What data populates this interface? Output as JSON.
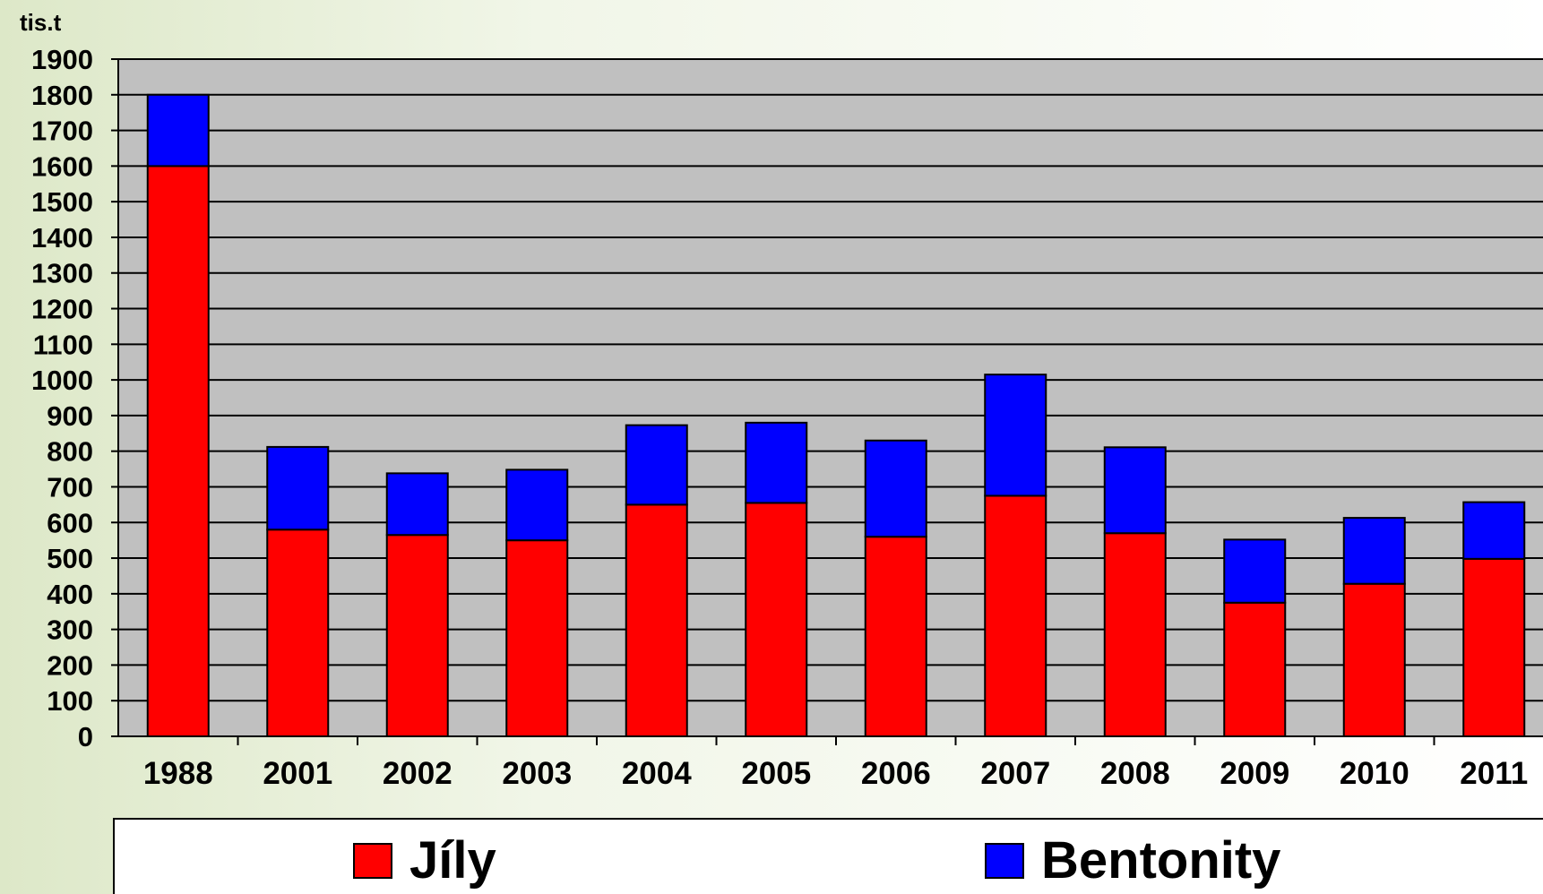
{
  "chart_data": {
    "type": "bar",
    "stacked": true,
    "ylabel": "tis.t",
    "ylim": [
      0,
      1900
    ],
    "ytick_step": 100,
    "grid": true,
    "legend_position": "bottom",
    "categories": [
      "1988",
      "2001",
      "2002",
      "2003",
      "2004",
      "2005",
      "2006",
      "2007",
      "2008",
      "2009",
      "2010",
      "2011"
    ],
    "series": [
      {
        "name": "Jíly",
        "color": "#ff0000",
        "values": [
          1600,
          580,
          565,
          550,
          650,
          655,
          560,
          675,
          570,
          375,
          428,
          498
        ]
      },
      {
        "name": "Bentonity",
        "color": "#0000ff",
        "values": [
          200,
          232,
          173,
          198,
          223,
          225,
          270,
          340,
          241,
          177,
          185,
          159
        ]
      }
    ],
    "plot_background": "#c0c0c0"
  }
}
